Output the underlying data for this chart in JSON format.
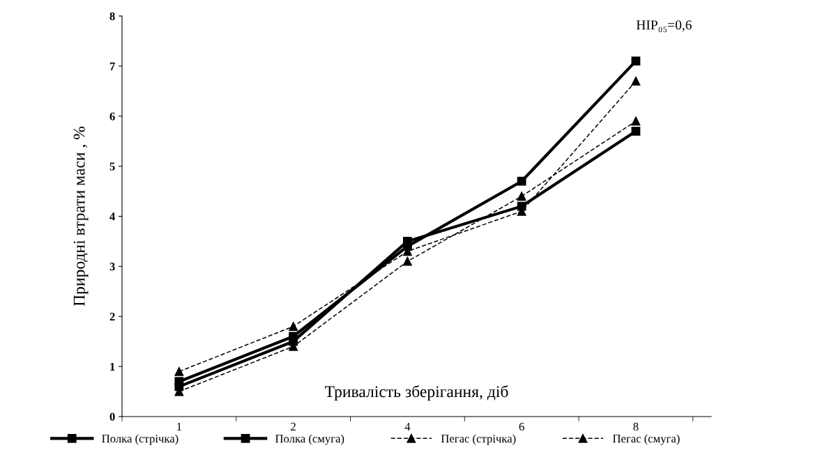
{
  "chart_data": {
    "type": "line",
    "ylabel": "Природні втрати маси , %",
    "xlabel": "Тривалість зберігання, діб",
    "categories": [
      "1",
      "2",
      "4",
      "6",
      "8"
    ],
    "series": [
      {
        "name": "Полка (стрічка)",
        "color": "#000000",
        "values": [
          0.7,
          1.6,
          3.4,
          4.7,
          7.1
        ],
        "marker": "square",
        "line_style": "solid"
      },
      {
        "name": "Полка (смуга)",
        "color": "#000000",
        "values": [
          0.6,
          1.5,
          3.5,
          4.2,
          5.7
        ],
        "marker": "square",
        "line_style": "solid"
      },
      {
        "name": "Пегас (стрічка)",
        "color": "#000000",
        "values": [
          0.9,
          1.8,
          3.3,
          4.1,
          6.7
        ],
        "marker": "triangle",
        "line_style": "dashed"
      },
      {
        "name": "Пегас (смуга)",
        "color": "#000000",
        "values": [
          0.5,
          1.4,
          3.1,
          4.4,
          5.9
        ],
        "marker": "triangle",
        "line_style": "dashed"
      }
    ],
    "ylim": [
      0,
      8
    ],
    "yticks": [
      0,
      1,
      2,
      3,
      4,
      5,
      6,
      7,
      8
    ],
    "annotations": [
      "НІР₀₅=0,6"
    ],
    "legend": "bottom",
    "grid": false
  }
}
